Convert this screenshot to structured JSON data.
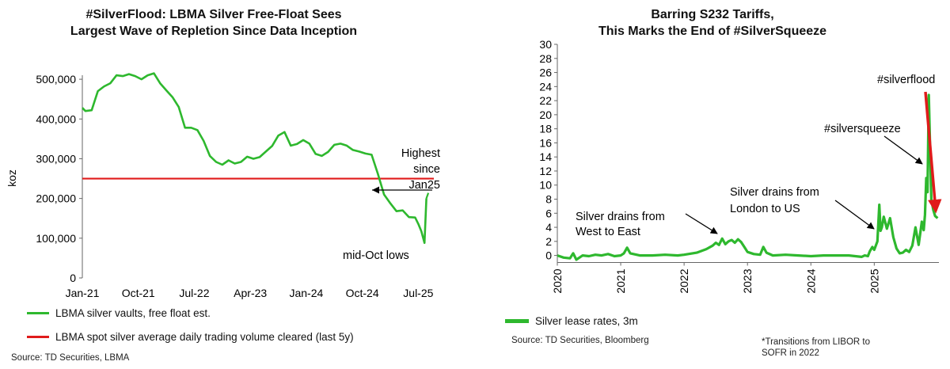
{
  "left": {
    "title_line1": "#SilverFlood: LBMA Silver Free-Float Sees",
    "title_line2": "Largest Wave of Repletion Since Data Inception",
    "legend": [
      {
        "label": "LBMA silver vaults, free float est.",
        "color": "#2eb82e"
      },
      {
        "label": "LBMA spot silver average daily trading volume cleared (last 5y)",
        "color": "#e01b1b"
      }
    ],
    "source": "Source: TD Securities, LBMA",
    "chart_data": {
      "type": "line",
      "ylabel": "koz",
      "ylim": [
        0,
        550000
      ],
      "yticks": [
        0,
        100000,
        200000,
        300000,
        400000,
        500000
      ],
      "ytick_labels": [
        "0",
        "100,000",
        "200,000",
        "300,000",
        "400,000",
        "500,000"
      ],
      "xlim": [
        0,
        56.5
      ],
      "xticks": [
        0,
        9,
        18,
        27,
        36,
        45,
        54
      ],
      "xtick_labels": [
        "Jan-21",
        "Oct-21",
        "Jul-22",
        "Apr-23",
        "Jan-24",
        "Oct-24",
        "Jul-25"
      ],
      "series": [
        {
          "name": "LBMA silver vaults, free float est.",
          "color": "#2eb82e",
          "x": [
            0,
            0.5,
            1.5,
            2.5,
            3.5,
            4.5,
            5.5,
            6.5,
            7.5,
            8.5,
            9.5,
            10.5,
            11.5,
            12.5,
            13.5,
            14.5,
            15.5,
            16.5,
            17.5,
            18.5,
            19.5,
            20.5,
            21.5,
            22.5,
            23.5,
            24.5,
            25.5,
            26.5,
            27.5,
            28.5,
            29.5,
            30.5,
            31.5,
            32.5,
            33.5,
            34.5,
            35.5,
            36.5,
            37.5,
            38.5,
            39.5,
            40.5,
            41.5,
            42.5,
            43.5,
            44.5,
            45.5,
            46.5,
            47.5,
            48.5,
            49.5,
            50.5,
            51.5,
            52.5,
            53.5,
            54.0,
            54.5,
            55.0,
            55.3
          ],
          "values": [
            428000,
            420000,
            422000,
            470000,
            482000,
            490000,
            510000,
            508000,
            513000,
            508000,
            500000,
            510000,
            515000,
            490000,
            472000,
            455000,
            430000,
            378000,
            378000,
            372000,
            345000,
            307000,
            292000,
            285000,
            296000,
            288000,
            292000,
            305000,
            300000,
            304000,
            318000,
            332000,
            358000,
            367000,
            333000,
            337000,
            347000,
            338000,
            312000,
            307000,
            317000,
            335000,
            338000,
            333000,
            322000,
            318000,
            313000,
            310000,
            262000,
            210000,
            188000,
            168000,
            170000,
            153000,
            152000,
            136000,
            117000,
            88000,
            200000
          ]
        },
        {
          "name": "LBMA spot silver average daily trading volume cleared (last 5y)",
          "color": "#e01b1b",
          "x": [
            0,
            56.5
          ],
          "values": [
            250000,
            250000
          ]
        }
      ],
      "annotations": [
        {
          "text": "Highest since Jan25",
          "lines": [
            "Highest",
            "since",
            "Jan25"
          ]
        },
        {
          "text": "mid-Oct lows"
        }
      ]
    }
  },
  "right": {
    "title_line1": "Barring S232 Tariffs,",
    "title_line2": "This Marks the End of #SilverSqueeze",
    "legend_label": "Silver lease rates, 3m",
    "source": "Source: TD Securities, Bloomberg",
    "note_line1": "*Transitions from LIBOR to",
    "note_line2": "SOFR in 2022",
    "chart_data": {
      "type": "line",
      "ylim": [
        -1,
        30
      ],
      "yticks": [
        0,
        2,
        4,
        6,
        8,
        10,
        12,
        14,
        16,
        18,
        20,
        22,
        24,
        26,
        28,
        30
      ],
      "ytick_labels": [
        "0",
        "2",
        "4",
        "6",
        "8",
        "10",
        "12",
        "14",
        "16",
        "18",
        "20",
        "22",
        "24",
        "26",
        "28",
        "30"
      ],
      "xlim": [
        2020,
        2026.02
      ],
      "xtick_labels": [
        "2020",
        "2021",
        "2022",
        "2023",
        "2024",
        "2025"
      ],
      "series": [
        {
          "name": "Silver lease rates, 3m",
          "color": "#2eb82e",
          "x": [
            2020.0,
            2020.1,
            2020.2,
            2020.25,
            2020.3,
            2020.4,
            2020.5,
            2020.6,
            2020.7,
            2020.8,
            2020.9,
            2021.0,
            2021.05,
            2021.1,
            2021.15,
            2021.3,
            2021.5,
            2021.7,
            2021.9,
            2022.0,
            2022.2,
            2022.35,
            2022.45,
            2022.5,
            2022.55,
            2022.6,
            2022.65,
            2022.7,
            2022.75,
            2022.8,
            2022.85,
            2022.9,
            2022.95,
            2023.0,
            2023.1,
            2023.2,
            2023.25,
            2023.3,
            2023.4,
            2023.6,
            2023.8,
            2024.0,
            2024.2,
            2024.4,
            2024.6,
            2024.8,
            2024.85,
            2024.9,
            2024.93,
            2024.97,
            2025.0,
            2025.05,
            2025.08,
            2025.1,
            2025.12,
            2025.15,
            2025.2,
            2025.25,
            2025.3,
            2025.35,
            2025.4,
            2025.45,
            2025.5,
            2025.55,
            2025.6,
            2025.65,
            2025.7,
            2025.75,
            2025.78,
            2025.8,
            2025.82,
            2025.84,
            2025.86,
            2025.88,
            2025.9,
            2025.93,
            2025.96,
            2026.0
          ],
          "values": [
            0,
            -0.3,
            -0.4,
            0.3,
            -0.6,
            0,
            -0.1,
            0.1,
            0,
            0.2,
            -0.1,
            0,
            0.3,
            1.1,
            0.3,
            0,
            0,
            0.1,
            0,
            0.1,
            0.4,
            0.9,
            1.4,
            1.8,
            1.5,
            2.4,
            1.6,
            2.0,
            2.2,
            1.8,
            2.3,
            1.9,
            1.2,
            0.5,
            0.2,
            0.1,
            1.2,
            0.4,
            0,
            0.1,
            0,
            -0.1,
            0,
            0,
            0,
            -0.2,
            0,
            -0.1,
            0.6,
            1.2,
            0.8,
            2.0,
            7.2,
            3.5,
            4.0,
            5.5,
            3.8,
            5.3,
            2.6,
            1.0,
            0.3,
            0.4,
            0.8,
            0.5,
            1.4,
            4.0,
            1.5,
            4.8,
            3.6,
            5.8,
            11.0,
            9.0,
            22.8,
            15.5,
            8.0,
            6.5,
            5.6,
            5.3
          ]
        }
      ],
      "annotations": [
        {
          "text": "Silver drains from West to East",
          "lines": [
            "Silver drains from",
            "West to East"
          ]
        },
        {
          "text": "Silver drains from London to US",
          "lines": [
            "Silver drains from",
            "London to US"
          ]
        },
        {
          "text": "#silversqueeze"
        },
        {
          "text": "#silverflood"
        }
      ]
    }
  }
}
